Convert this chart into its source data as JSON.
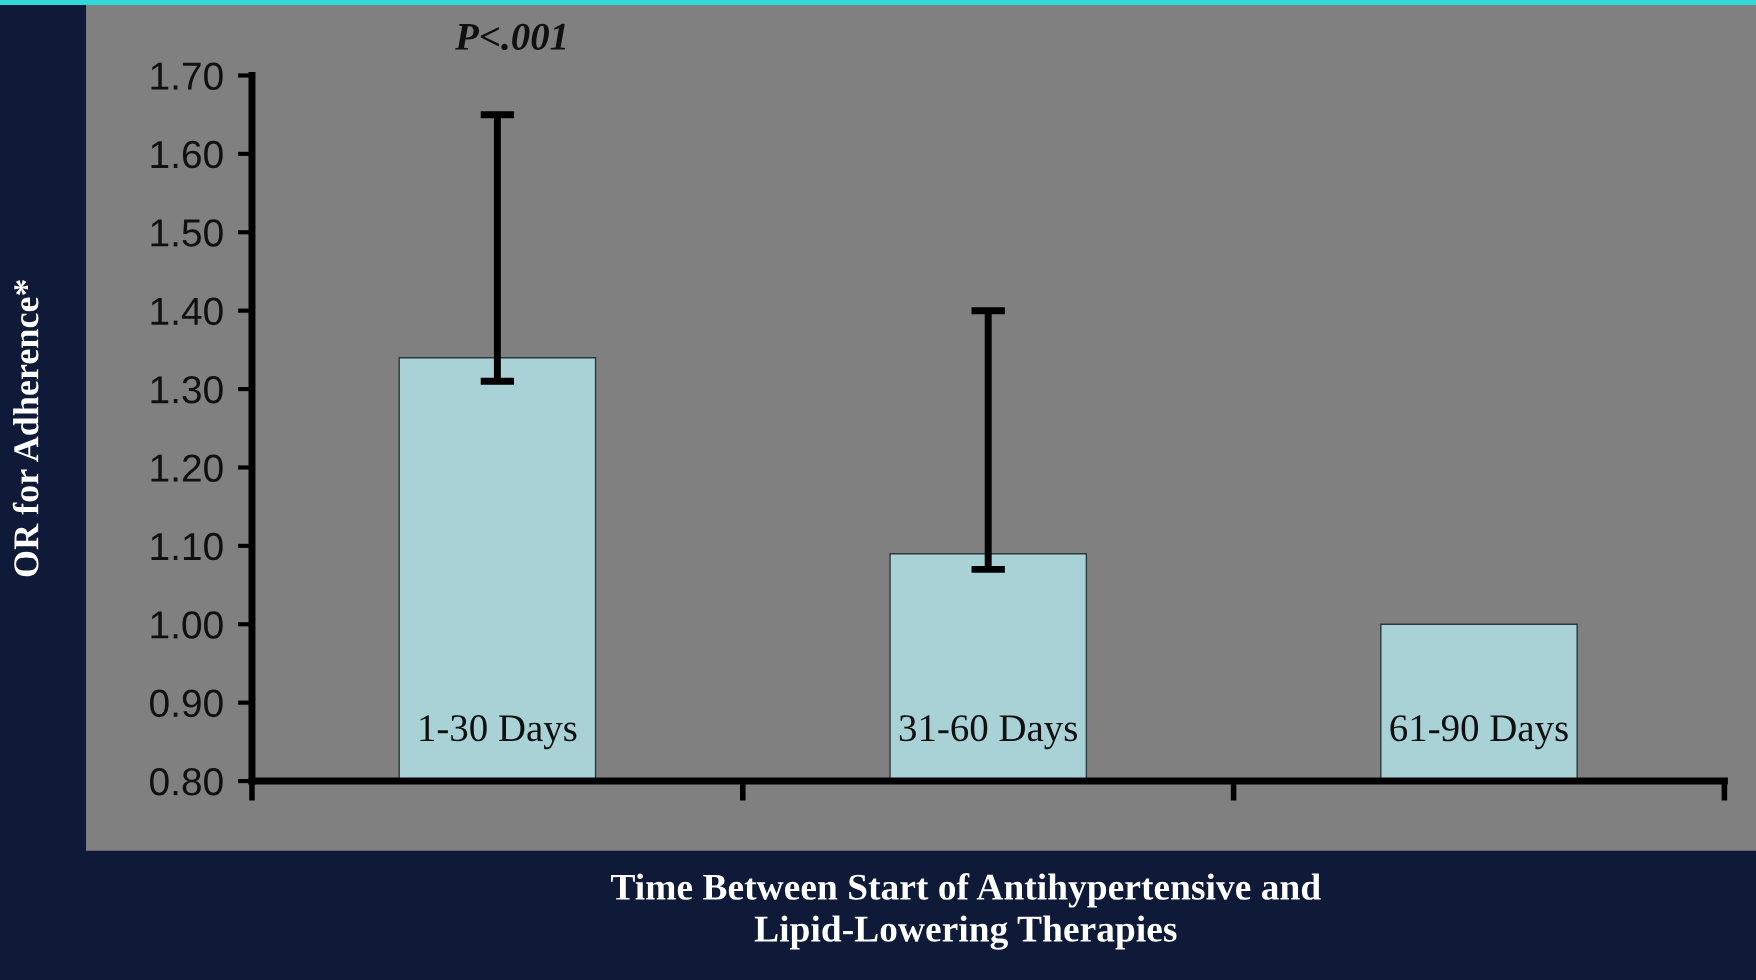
{
  "chart_data": {
    "type": "bar",
    "xlabel": "Time Between Start of Antihypertensive and\nLipid-Lowering Therapies",
    "ylabel": "OR for Adherence*",
    "categories": [
      "1-30 Days",
      "31-60 Days",
      "61-90 Days"
    ],
    "values": [
      1.34,
      1.09,
      1.0
    ],
    "errors": [
      [
        1.31,
        1.65
      ],
      [
        1.07,
        1.4
      ],
      null
    ],
    "color": "#a9d2d6",
    "ylim": [
      0.8,
      1.7
    ],
    "yticks": [
      {
        "value": 0.8,
        "label": "0.80"
      },
      {
        "value": 0.9,
        "label": "0.90"
      },
      {
        "value": 1.0,
        "label": "1.00"
      },
      {
        "value": 1.1,
        "label": "1.10"
      },
      {
        "value": 1.2,
        "label": "1.20"
      },
      {
        "value": 1.3,
        "label": "1.30"
      },
      {
        "value": 1.4,
        "label": "1.40"
      },
      {
        "value": 1.5,
        "label": "1.50"
      },
      {
        "value": 1.6,
        "label": "1.60"
      },
      {
        "value": 1.7,
        "label": "1.70"
      }
    ],
    "annotations": [
      "P<.001"
    ],
    "grid": false,
    "legend": false
  }
}
